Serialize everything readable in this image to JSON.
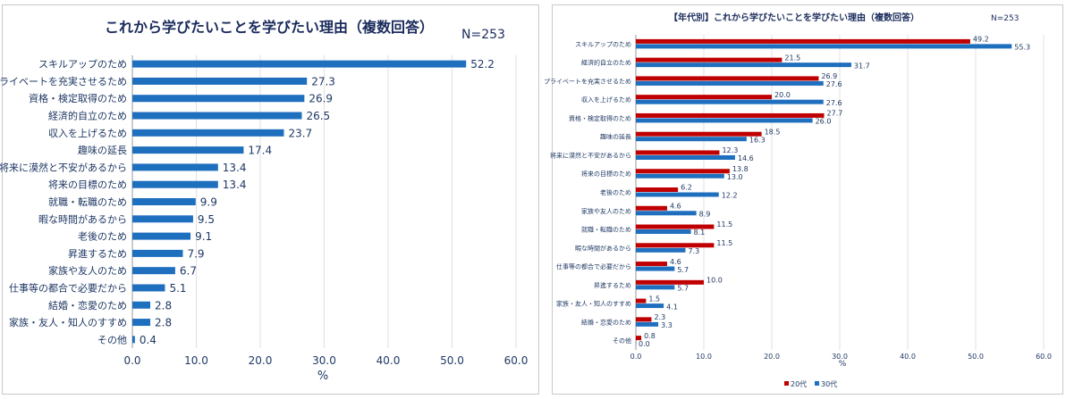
{
  "chart_data": [
    {
      "type": "bar",
      "orientation": "horizontal",
      "title": "これから学びたいことを学びたい理由（複数回答）",
      "note": "N=253",
      "xlabel": "%",
      "xlim": [
        0,
        60
      ],
      "xticks": [
        "0.0",
        "10.0",
        "20.0",
        "30.0",
        "40.0",
        "50.0",
        "60.0"
      ],
      "grid": true,
      "color": "#1f6fbf",
      "categories": [
        "スキルアップのため",
        "プライベートを充実させるため",
        "資格・検定取得のため",
        "経済的自立のため",
        "収入を上げるため",
        "趣味の延長",
        "将来に漠然と不安があるから",
        "将来の目標のため",
        "就職・転職のため",
        "暇な時間があるから",
        "老後のため",
        "昇進するため",
        "家族や友人のため",
        "仕事等の都合で必要だから",
        "結婚・恋愛のため",
        "家族・友人・知人のすすめ",
        "その他"
      ],
      "values": [
        52.2,
        27.3,
        26.9,
        26.5,
        23.7,
        17.4,
        13.4,
        13.4,
        9.9,
        9.5,
        9.1,
        7.9,
        6.7,
        5.1,
        2.8,
        2.8,
        0.4
      ],
      "value_labels": [
        "52.2",
        "27.3",
        "26.9",
        "26.5",
        "23.7",
        "17.4",
        "13.4",
        "13.4",
        "9.9",
        "9.5",
        "9.1",
        "7.9",
        "6.7",
        "5.1",
        "2.8",
        "2.8",
        "0.4"
      ]
    },
    {
      "type": "bar",
      "orientation": "horizontal",
      "title": "【年代別】これから学びたいことを学びたい理由（複数回答）",
      "note": "N=253",
      "xlabel": "%",
      "xlim": [
        0,
        60
      ],
      "xticks": [
        "0.0",
        "10.0",
        "20.0",
        "30.0",
        "40.0",
        "50.0",
        "60.0"
      ],
      "grid": true,
      "legend_position": "bottom",
      "categories": [
        "スキルアップのため",
        "経済的自立のため",
        "プライベートを充実させるため",
        "収入を上げるため",
        "資格・検定取得のため",
        "趣味の延長",
        "将来に漠然と不安があるから",
        "将来の目標のため",
        "老後のため",
        "家族や友人のため",
        "就職・転職のため",
        "暇な時間があるから",
        "仕事等の都合で必要だから",
        "昇進するため",
        "家族・友人・知人のすすめ",
        "結婚・恋愛のため",
        "その他"
      ],
      "series": [
        {
          "name": "20代",
          "color": "#c00000",
          "values": [
            49.2,
            21.5,
            26.9,
            20.0,
            27.7,
            18.5,
            12.3,
            13.8,
            6.2,
            4.6,
            11.5,
            11.5,
            4.6,
            10.0,
            1.5,
            2.3,
            0.8
          ],
          "value_labels": [
            "49.2",
            "21.5",
            "26.9",
            "20.0",
            "27.7",
            "18.5",
            "12.3",
            "13.8",
            "6.2",
            "4.6",
            "11.5",
            "11.5",
            "4.6",
            "10.0",
            "1.5",
            "2.3",
            "0.8"
          ]
        },
        {
          "name": "30代",
          "color": "#1f6fbf",
          "values": [
            55.3,
            31.7,
            27.6,
            27.6,
            26.0,
            16.3,
            14.6,
            13.0,
            12.2,
            8.9,
            8.1,
            7.3,
            5.7,
            5.7,
            4.1,
            3.3,
            0.0
          ],
          "value_labels": [
            "55.3",
            "31.7",
            "27.6",
            "27.6",
            "26.0",
            "16.3",
            "14.6",
            "13.0",
            "12.2",
            "8.9",
            "8.1",
            "7.3",
            "5.7",
            "5.7",
            "4.1",
            "3.3",
            "0.0"
          ]
        }
      ]
    }
  ]
}
